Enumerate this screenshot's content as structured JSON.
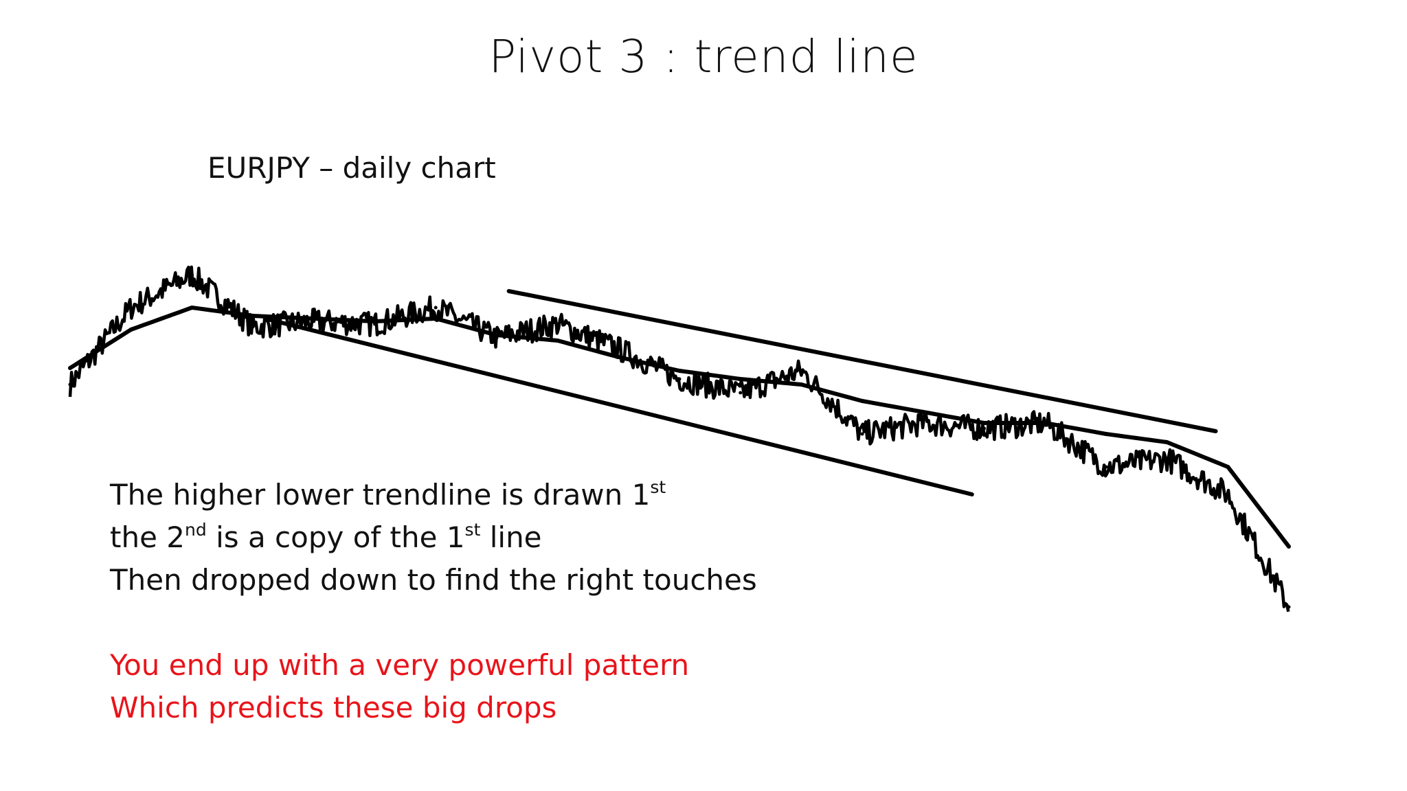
{
  "slide": {
    "title": "Pivot 3 : trend line",
    "subtitle": "EURJPY – daily chart",
    "notes": {
      "line1": {
        "text": "The higher lower trendline is drawn 1",
        "sup": "st"
      },
      "line2": {
        "a": "the 2",
        "sup1": "nd",
        "b": " is a copy of the 1",
        "sup2": "st",
        "c": " line"
      },
      "line3": "Then dropped down to find the right touches",
      "highlight1": "You end up with a very powerful pattern",
      "highlight2": "Which predicts these big drops"
    },
    "highlight_color": "#e8141a"
  },
  "chart_data": {
    "type": "line",
    "title": "",
    "xlabel": "",
    "ylabel": "",
    "axes_visible": false,
    "grid": false,
    "x": [
      0,
      5,
      10,
      15,
      20,
      25,
      30,
      35,
      40,
      45,
      50,
      55,
      60,
      65,
      70,
      75,
      80,
      85,
      90,
      95,
      100
    ],
    "ylim": [
      -30,
      100
    ],
    "series": [
      {
        "values": [
          58,
          86,
          98,
          79,
          81,
          80,
          86,
          75,
          80,
          71,
          60,
          55,
          63,
          40,
          44,
          42,
          44,
          28,
          31,
          18,
          -23
        ],
        "color": "#000000"
      },
      {
        "values": [
          64,
          78,
          86,
          83,
          82,
          81,
          82,
          76,
          74,
          68,
          63,
          60,
          58,
          52,
          48,
          44,
          44,
          40,
          37,
          28,
          -1
        ],
        "color": "#000000"
      }
    ],
    "trendlines": [
      {
        "points": [
          [
            16,
            82
          ],
          [
            74,
            18
          ]
        ]
      },
      {
        "points": [
          [
            36,
            92
          ],
          [
            94,
            41
          ]
        ]
      }
    ]
  }
}
